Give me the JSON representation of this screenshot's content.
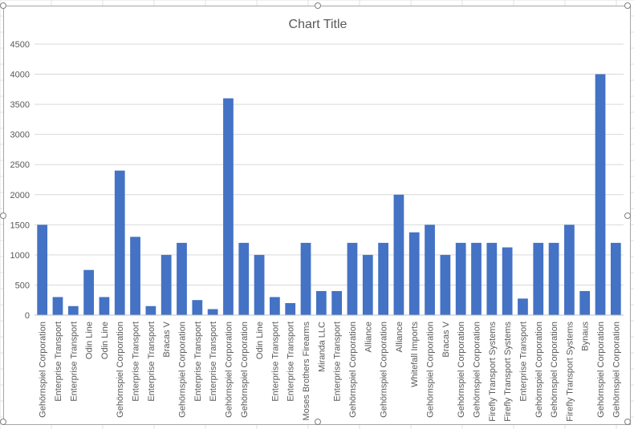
{
  "chart_data": {
    "type": "bar",
    "title": "Chart Title",
    "xlabel": "",
    "ylabel": "",
    "ylim": [
      0,
      4500
    ],
    "yticks": [
      0,
      500,
      1000,
      1500,
      2000,
      2500,
      3000,
      3500,
      4000,
      4500
    ],
    "grid": true,
    "legend": "none",
    "bar_color": "#4472c4",
    "categories": [
      "Gehörnspiel Corporation",
      "Enterprise Transport",
      "Enterprise Transport",
      "Odin Line",
      "Odin Line",
      "Gehörnspiel Corporation",
      "Enterprise Transport",
      "Enterprise Transport",
      "Bracas V",
      "Gehörnspiel Corporation",
      "Enterprise Transport",
      "Enterprise Transport",
      "Gehörnspiel Corporation",
      "Gehörnspiel Corporation",
      "Odin Line",
      "Enterprise Transport",
      "Enterprise Transport",
      "Moses Brothers Firearms",
      "Miranda LLC",
      "Enterprise Transport",
      "Gehörnspiel Corporation",
      "Alliance",
      "Gehörnspiel Corporation",
      "Alliance",
      "Whitefall Imports",
      "Gehörnspiel Corporation",
      "Bracas V",
      "Gehörnspiel Corporation",
      "Gehörnspiel Corporation",
      "Firefly Transport Systems",
      "Firefly Transport Systems",
      "Enterprise Transport",
      "Gehörnspiel Corporation",
      "Gehörnspiel Corporation",
      "Firefly Transport Systems",
      "Bynaus",
      "Gehörnspiel Corporation",
      "Gehörnspiel Corporation"
    ],
    "values": [
      1500,
      300,
      150,
      750,
      300,
      2400,
      1300,
      150,
      1000,
      1200,
      250,
      100,
      3600,
      1200,
      1000,
      300,
      200,
      1200,
      400,
      400,
      1200,
      1000,
      1200,
      2000,
      1375,
      1500,
      1000,
      1200,
      1200,
      1200,
      1125,
      275,
      1200,
      1200,
      1500,
      400,
      4000,
      1200
    ]
  }
}
